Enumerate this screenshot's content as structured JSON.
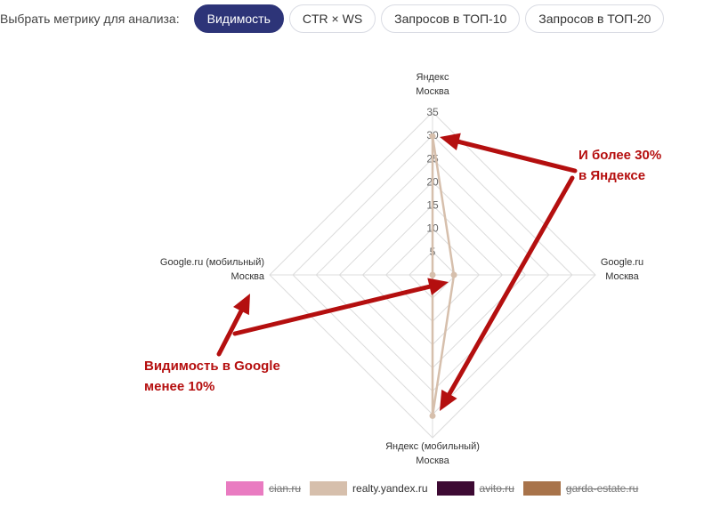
{
  "metric_selector": {
    "label": "Выбрать метрику для анализа:",
    "options": [
      {
        "label": "Видимость",
        "active": true
      },
      {
        "label": "CTR × WS",
        "active": false
      },
      {
        "label": "Запросов в ТОП-10",
        "active": false
      },
      {
        "label": "Запросов в ТОП-20",
        "active": false
      }
    ]
  },
  "chart_data": {
    "type": "radar",
    "axes": [
      {
        "line1": "Яндекс",
        "line2": "Москва"
      },
      {
        "line1": "Google.ru",
        "line2": "Москва"
      },
      {
        "line1": "Яндекс (мобильный)",
        "line2": "Москва"
      },
      {
        "line1": "Google.ru (мобильный)",
        "line2": "Москва"
      }
    ],
    "r_range": [
      0,
      35
    ],
    "r_ticks": [
      5,
      10,
      15,
      20,
      25,
      30,
      35
    ],
    "r_tick_labels": [
      "5",
      "10",
      "15",
      "20",
      "25",
      "30",
      "35"
    ],
    "grid": true,
    "legend_position": "bottom",
    "series": [
      {
        "name": "cian.ru",
        "color": "#e97bc1",
        "hidden": true,
        "values": []
      },
      {
        "name": "realty.yandex.ru",
        "color": "#d6bfac",
        "hidden": false,
        "values": [
          29.8,
          4.6,
          30.3,
          0
        ]
      },
      {
        "name": "avito.ru",
        "color": "#3d0a33",
        "hidden": true,
        "values": []
      },
      {
        "name": "garda-estate.ru",
        "color": "#a8734a",
        "hidden": true,
        "values": []
      }
    ]
  },
  "annotations": [
    {
      "line1": "И более 30%",
      "line2": "в Яндексе",
      "color": "#b50e0e"
    },
    {
      "line1": "Видимость в Google",
      "line2": "менее 10%",
      "color": "#b50e0e"
    }
  ]
}
